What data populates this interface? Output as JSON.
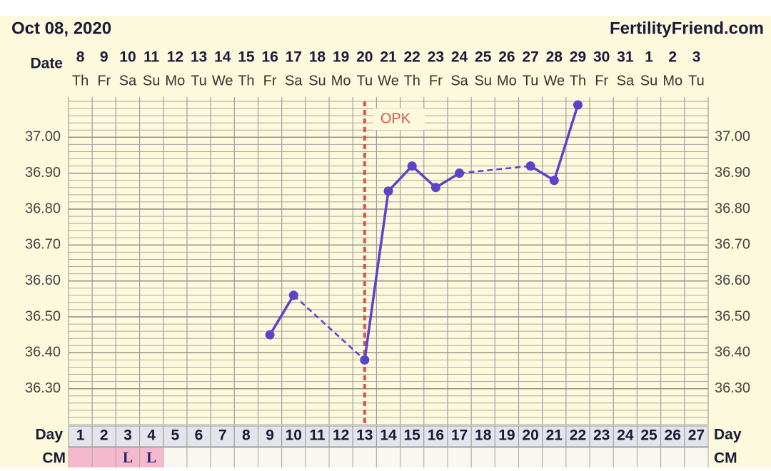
{
  "chart_data": {
    "type": "line",
    "title": "Oct 08, 2020",
    "brand": "FertilityFriend.com",
    "date_label": "Date",
    "day_label": "Day",
    "cm_label": "CM",
    "dates": [
      8,
      9,
      10,
      11,
      12,
      13,
      14,
      15,
      16,
      17,
      18,
      19,
      20,
      21,
      22,
      23,
      24,
      25,
      26,
      27,
      28,
      29,
      30,
      31,
      1,
      2,
      3
    ],
    "weekdays": [
      "Th",
      "Fr",
      "Sa",
      "Su",
      "Mo",
      "Tu",
      "We",
      "Th",
      "Fr",
      "Sa",
      "Su",
      "Mo",
      "Tu",
      "We",
      "Th",
      "Fr",
      "Sa",
      "Su",
      "Mo",
      "Tu",
      "We",
      "Th",
      "Fr",
      "Sa",
      "Su",
      "Mo",
      "Tu"
    ],
    "categories": [
      1,
      2,
      3,
      4,
      5,
      6,
      7,
      8,
      9,
      10,
      11,
      12,
      13,
      14,
      15,
      16,
      17,
      18,
      19,
      20,
      21,
      22,
      23,
      24,
      25,
      26,
      27
    ],
    "series": [
      {
        "color": "#5a44c8",
        "values": [
          null,
          null,
          null,
          null,
          null,
          null,
          null,
          null,
          36.45,
          36.56,
          null,
          null,
          36.38,
          36.85,
          36.92,
          36.86,
          36.9,
          null,
          null,
          36.92,
          36.88,
          37.09,
          null,
          null,
          null,
          null,
          null
        ]
      }
    ],
    "cm": [
      null,
      null,
      "L",
      "L",
      null,
      null,
      null,
      null,
      null,
      null,
      null,
      null,
      null,
      null,
      null,
      null,
      null,
      null,
      null,
      null,
      null,
      null,
      null,
      null,
      null,
      null,
      null
    ],
    "cm_colors": [
      "#f6b8cc",
      "#f6b8cc",
      "#f6b8cc",
      "#f6b8cc",
      null,
      null,
      null,
      null,
      null,
      null,
      null,
      null,
      null,
      null,
      null,
      null,
      null,
      null,
      null,
      null,
      null,
      null,
      null,
      null,
      null,
      null,
      null
    ],
    "annotations": [
      {
        "text": "OPK",
        "day": 13,
        "color": "#d9534f"
      }
    ],
    "ylim": [
      36.2,
      37.1
    ],
    "yticks": [
      {
        "value": 36.3,
        "label": "36.30"
      },
      {
        "value": 36.4,
        "label": "36.40"
      },
      {
        "value": 36.5,
        "label": "36.50"
      },
      {
        "value": 36.6,
        "label": "36.60"
      },
      {
        "value": 36.7,
        "label": "36.70"
      },
      {
        "value": 36.8,
        "label": "36.80"
      },
      {
        "value": 36.9,
        "label": "36.90"
      },
      {
        "value": 37.0,
        "label": "37.00"
      }
    ],
    "grid": true
  }
}
